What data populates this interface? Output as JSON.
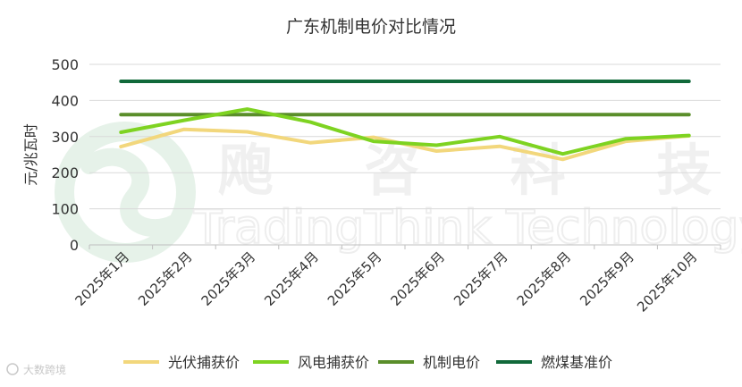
{
  "chart_data": {
    "type": "line",
    "title": "广东机制电价对比情况",
    "ylabel": "元/兆瓦时",
    "xlabel": "",
    "ylim": [
      0,
      500
    ],
    "yticks": [
      0,
      100,
      200,
      300,
      400,
      500
    ],
    "grid": "horizontal",
    "legend_position": "bottom",
    "categories": [
      "2025年1月",
      "2025年2月",
      "2025年3月",
      "2025年4月",
      "2025年5月",
      "2025年6月",
      "2025年7月",
      "2025年8月",
      "2025年9月",
      "2025年10月"
    ],
    "series": [
      {
        "name": "光伏捕获价",
        "color": "#F2D77C",
        "values": [
          272,
          320,
          313,
          283,
          298,
          260,
          273,
          237,
          287,
          302
        ]
      },
      {
        "name": "风电捕获价",
        "color": "#7ED321",
        "values": [
          312,
          345,
          376,
          340,
          287,
          276,
          300,
          252,
          294,
          303
        ]
      },
      {
        "name": "机制电价",
        "color": "#5A8E2A",
        "values": [
          361,
          361,
          361,
          361,
          361,
          361,
          361,
          361,
          361,
          361
        ]
      },
      {
        "name": "燃煤基准价",
        "color": "#11693A",
        "values": [
          453,
          453,
          453,
          453,
          453,
          453,
          453,
          453,
          453,
          453
        ]
      }
    ]
  },
  "watermark": {
    "cn_text": "飑 咨 科 技",
    "en_text": "TradingThink Technology"
  },
  "source_mark": "大数跨境"
}
